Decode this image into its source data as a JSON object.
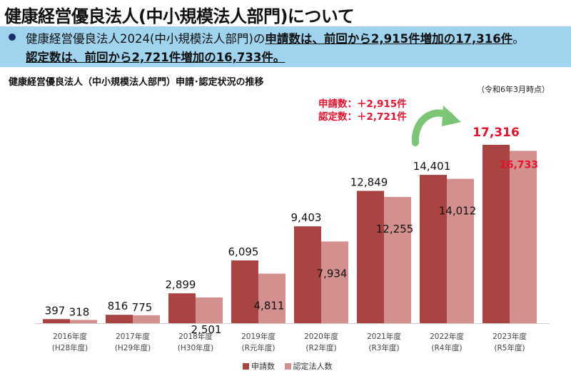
{
  "title": "健康経営優良法人(中小規模法人部門)について",
  "summary": {
    "line1_prefix": "健康経営優良法人2024(中小規模法人部門)の",
    "line1_bold": "申請数は、前回から2,915件増加の17,316件",
    "line1_end": "。",
    "line2_bold": "認定数は、前回から2,721件増加の16,733件",
    "line2_end": "。"
  },
  "colors": {
    "applications": "#a94442",
    "certified": "#d4908f",
    "accent": "#e8102a",
    "box": "#9fd3ee",
    "arrow": "#7cc576"
  },
  "chart_data": {
    "type": "bar",
    "title": "健康経営優良法人（中小規模法人部門）申請･認定状況の推移",
    "as_of": "（令和6年3月時点）",
    "categories": [
      [
        "2016年度",
        "(H28年度)"
      ],
      [
        "2017年度",
        "(H29年度)"
      ],
      [
        "2018年度",
        "(H30年度)"
      ],
      [
        "2019年度",
        "(R元年度)"
      ],
      [
        "2020年度",
        "(R2年度)"
      ],
      [
        "2021年度",
        "(R3年度)"
      ],
      [
        "2022年度",
        "(R4年度)"
      ],
      [
        "2023年度",
        "(R5年度)"
      ]
    ],
    "series": [
      {
        "name": "申請数",
        "values": [
          397,
          816,
          2899,
          6095,
          9403,
          12849,
          14401,
          17316
        ],
        "labels": [
          "397",
          "816",
          "2,899",
          "6,095",
          "9,403",
          "12,849",
          "14,401",
          "17,316"
        ]
      },
      {
        "name": "認定法人数",
        "values": [
          318,
          775,
          2501,
          4811,
          7934,
          12255,
          14012,
          16733
        ],
        "labels": [
          "318",
          "775",
          "2,501",
          "4,811",
          "7,934",
          "12,255",
          "14,012",
          "16,733"
        ]
      }
    ],
    "ylim": [
      0,
      17316
    ],
    "annotations": [
      "申請数：＋2,915件",
      "認定数：＋2,721件"
    ],
    "legend_position": "bottom"
  }
}
